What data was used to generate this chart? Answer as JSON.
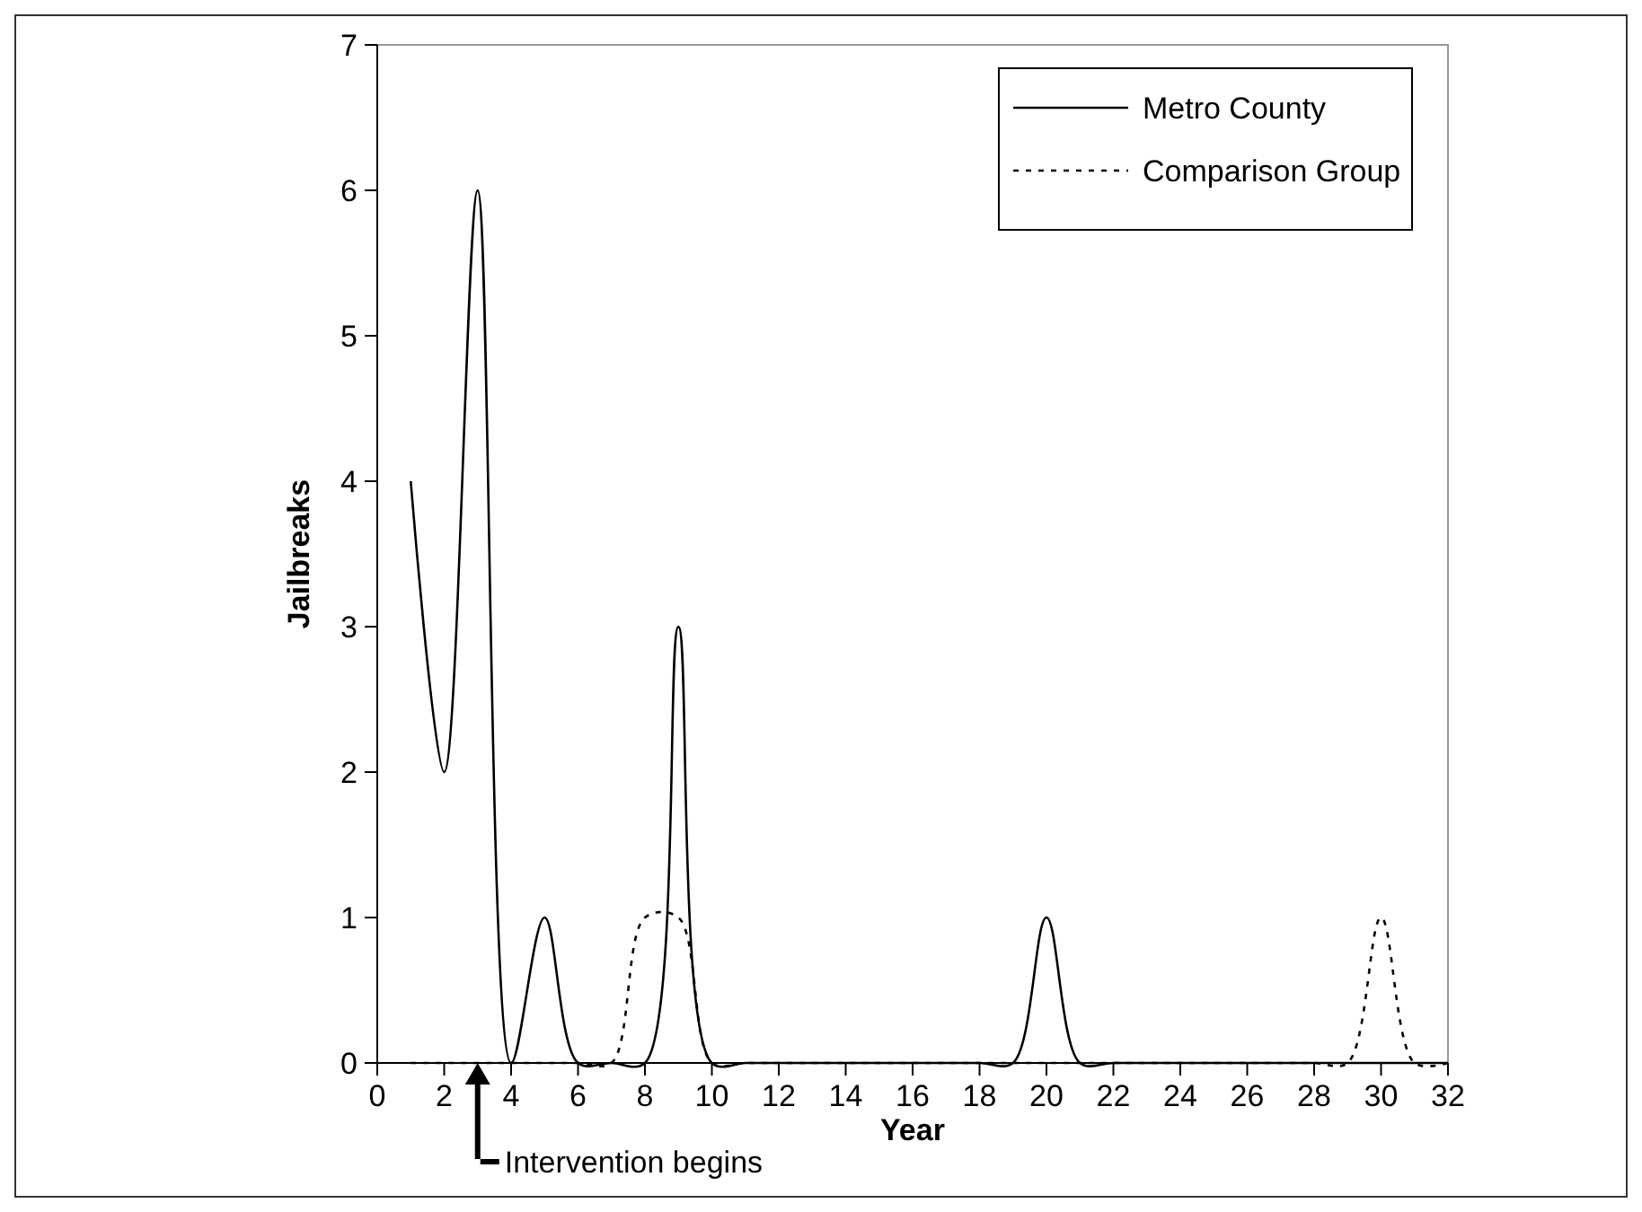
{
  "chart_data": {
    "type": "line",
    "xlabel": "Year",
    "ylabel": "Jailbreaks",
    "x": [
      1,
      2,
      3,
      4,
      5,
      6,
      7,
      8,
      9,
      10,
      11,
      12,
      13,
      14,
      15,
      16,
      17,
      18,
      19,
      20,
      21,
      22,
      23,
      24,
      25,
      26,
      27,
      28,
      29,
      30,
      31,
      32
    ],
    "series": [
      {
        "name": "Metro County",
        "color": "#000000",
        "line_style": "solid",
        "values": [
          4,
          2,
          6,
          0,
          1,
          0,
          0,
          0,
          3,
          0,
          0,
          0,
          0,
          0,
          0,
          0,
          0,
          0,
          0,
          1,
          0,
          0,
          0,
          0,
          0,
          0,
          0,
          0,
          0,
          0,
          0,
          0
        ]
      },
      {
        "name": "Comparison Group",
        "color": "#000000",
        "line_style": "dotted",
        "values": [
          0,
          0,
          0,
          0,
          0,
          0,
          0,
          1,
          1,
          0,
          0,
          0,
          0,
          0,
          0,
          0,
          0,
          0,
          0,
          0,
          0,
          0,
          0,
          0,
          0,
          0,
          0,
          0,
          0,
          1,
          0,
          0
        ]
      }
    ],
    "xlim": [
      0,
      32
    ],
    "xticks": [
      0,
      2,
      4,
      6,
      8,
      10,
      12,
      14,
      16,
      18,
      20,
      22,
      24,
      26,
      28,
      30,
      32
    ],
    "ylim": [
      0,
      7
    ],
    "yticks": [
      0,
      1,
      2,
      3,
      4,
      5,
      6,
      7
    ],
    "grid": false,
    "legend": "top right",
    "marker": "none",
    "annotations": [
      {
        "text": "Intervention begins",
        "x": 3,
        "y": 0
      }
    ]
  }
}
